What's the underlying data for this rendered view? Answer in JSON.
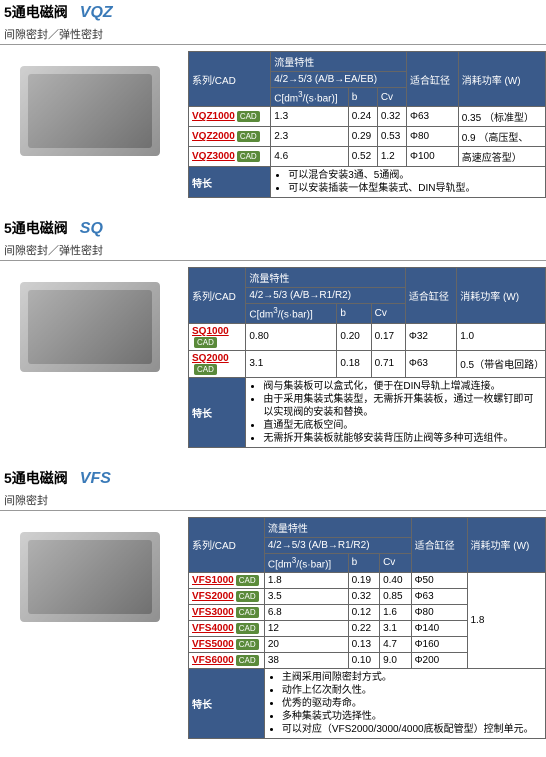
{
  "sections": [
    {
      "title_cn": "5通电磁阀",
      "title_en": "VQZ",
      "title_color": "#3a7ab8",
      "subtitle": "间隙密封／弹性密封",
      "header_bg": "#3a5a8a",
      "headers": {
        "series": "系列/CAD",
        "flow_title": "流量特性",
        "flow_sub": "4/2→5/3 (A/B→EA/EB)",
        "c_col": "C[dm³/(s·bar)]",
        "b_col": "b",
        "cv_col": "Cv",
        "bore": "适合缸径",
        "power": "消耗功率 (W)"
      },
      "rows": [
        {
          "series": "VQZ1000",
          "c": "1.3",
          "b": "0.24",
          "cv": "0.32",
          "bore": "Φ63",
          "power": "0.35 （标准型）"
        },
        {
          "series": "VQZ2000",
          "c": "2.3",
          "b": "0.29",
          "cv": "0.53",
          "bore": "Φ80",
          "power": "0.9 （高压型、"
        },
        {
          "series": "VQZ3000",
          "c": "4.6",
          "b": "0.52",
          "cv": "1.2",
          "bore": "Φ100",
          "power": "高速应答型）"
        }
      ],
      "feature_label": "特长",
      "features": [
        "可以混合安装3通、5通阀。",
        "可以安装插装一体型集装式、DIN导轨型。"
      ]
    },
    {
      "title_cn": "5通电磁阀",
      "title_en": "SQ",
      "title_color": "#3a7ab8",
      "subtitle": "间隙密封／弹性密封",
      "header_bg": "#3a5a8a",
      "headers": {
        "series": "系列/CAD",
        "flow_title": "流量特性",
        "flow_sub": "4/2→5/3 (A/B→R1/R2)",
        "c_col": "C[dm³/(s·bar)]",
        "b_col": "b",
        "cv_col": "Cv",
        "bore": "适合缸径",
        "power": "消耗功率 (W)"
      },
      "rows": [
        {
          "series": "SQ1000",
          "c": "0.80",
          "b": "0.20",
          "cv": "0.17",
          "bore": "Φ32",
          "power": "1.0"
        },
        {
          "series": "SQ2000",
          "c": "3.1",
          "b": "0.18",
          "cv": "0.71",
          "bore": "Φ63",
          "power": "0.5（带省电回路）"
        }
      ],
      "feature_label": "特长",
      "features": [
        "阀与集装板可以盒式化，便于在DIN导轨上增减连接。",
        "由于采用集装式集装型，无需拆开集装板，通过一枚螺钉即可以实现阀的安装和替换。",
        "直通型无底板空间。",
        "无需拆开集装板就能够安装背压防止阀等多种可选组件。"
      ]
    },
    {
      "title_cn": "5通电磁阀",
      "title_en": "VFS",
      "title_color": "#3a7ab8",
      "subtitle": "间隙密封",
      "header_bg": "#3a5a8a",
      "headers": {
        "series": "系列/CAD",
        "flow_title": "流量特性",
        "flow_sub": "4/2→5/3 (A/B→R1/R2)",
        "c_col": "C[dm³/(s·bar)]",
        "b_col": "b",
        "cv_col": "Cv",
        "bore": "适合缸径",
        "power": "消耗功率 (W)"
      },
      "rows": [
        {
          "series": "VFS1000",
          "c": "1.8",
          "b": "0.19",
          "cv": "0.40",
          "bore": "Φ50"
        },
        {
          "series": "VFS2000",
          "c": "3.5",
          "b": "0.32",
          "cv": "0.85",
          "bore": "Φ63"
        },
        {
          "series": "VFS3000",
          "c": "6.8",
          "b": "0.12",
          "cv": "1.6",
          "bore": "Φ80"
        },
        {
          "series": "VFS4000",
          "c": "12",
          "b": "0.22",
          "cv": "3.1",
          "bore": "Φ140"
        },
        {
          "series": "VFS5000",
          "c": "20",
          "b": "0.13",
          "cv": "4.7",
          "bore": "Φ160"
        },
        {
          "series": "VFS6000",
          "c": "38",
          "b": "0.10",
          "cv": "9.0",
          "bore": "Φ200"
        }
      ],
      "power_merged": "1.8",
      "feature_label": "特长",
      "features": [
        "主阀采用间隙密封方式。",
        "动作上亿次耐久性。",
        "优秀的驱动寿命。",
        "多种集装式功选择性。",
        "可以对应（VFS2000/3000/4000底板配管型）控制单元。"
      ]
    }
  ],
  "cad_label": "CAD"
}
